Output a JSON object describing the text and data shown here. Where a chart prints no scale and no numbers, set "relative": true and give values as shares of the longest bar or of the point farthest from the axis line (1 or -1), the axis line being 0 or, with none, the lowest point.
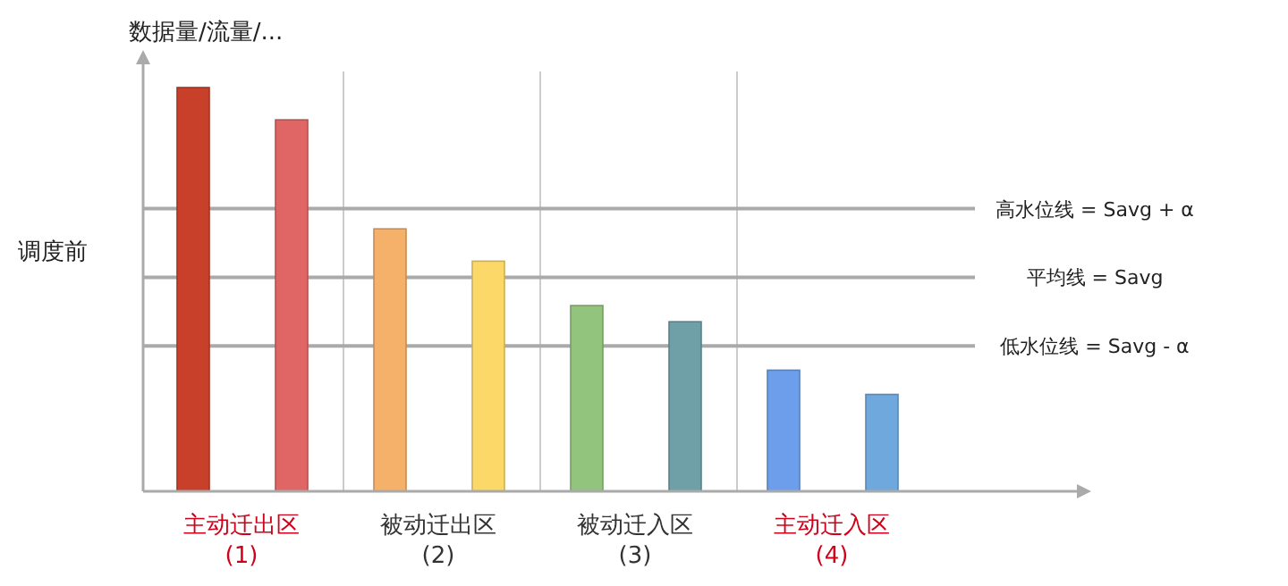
{
  "chart_data": {
    "type": "bar",
    "relative": true,
    "ylabel": "数据量/流量/...",
    "categories": [
      "主动迁出区\n(1)",
      "被动迁出区\n(2)",
      "被动迁入区\n(3)",
      "主动迁入区\n(4)"
    ],
    "series": [
      {
        "colors": [
          "#c8402a",
          "#f5b06a",
          "#93c47d",
          "#6d9eeb"
        ],
        "values": [
          1,
          0.65,
          0.46,
          0.3
        ]
      },
      {
        "colors": [
          "#e06666",
          "#fcd868",
          "#6fa0a8",
          "#6fa8dc"
        ],
        "values": [
          0.92,
          0.57,
          0.42,
          0.24
        ]
      }
    ],
    "ref_lines": [
      {
        "axis": "y",
        "value": 0.7,
        "label": "高水位线 = Savg + α",
        "color": "#aaaaaa"
      },
      {
        "axis": "y",
        "value": 0.53,
        "label": "平均线 = Savg",
        "color": "#aaaaaa"
      },
      {
        "axis": "y",
        "value": 0.36,
        "label": "低水位线 = Savg - α",
        "color": "#aaaaaa"
      }
    ],
    "annotations": [
      "调度前"
    ]
  }
}
